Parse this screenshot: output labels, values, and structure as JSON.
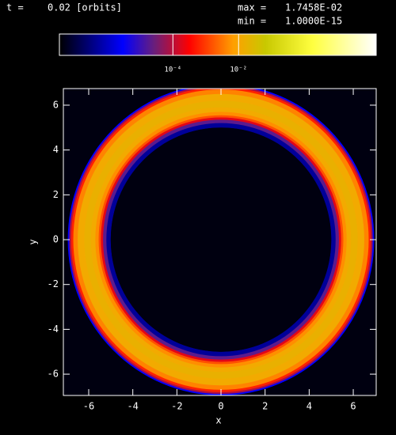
{
  "chart_data": {
    "type": "radial-image",
    "header": {
      "time_label": "t =",
      "time_value": "0.02 [orbits]",
      "max_label": "max =",
      "max_value": "1.7458E-02",
      "min_label": "min =",
      "min_value": "1.0000E-15"
    },
    "xlabel": "x",
    "ylabel": "y",
    "xlim": [
      -7.15,
      7.04
    ],
    "ylim": [
      -6.95,
      6.74
    ],
    "xticks": [
      -6,
      -4,
      -2,
      0,
      2,
      4,
      6
    ],
    "yticks": [
      -6,
      -4,
      -2,
      0,
      2,
      4,
      6
    ],
    "center": [
      0,
      0
    ],
    "r": [
      5.0,
      5.2,
      5.35,
      5.45,
      5.55,
      5.7,
      5.9,
      6.2,
      6.5,
      6.7,
      6.8,
      6.88,
      6.95
    ],
    "values": [
      1e-08,
      5e-07,
      2e-05,
      0.0002,
      0.0015,
      0.005,
      0.012,
      0.017,
      0.012,
      0.004,
      0.0006,
      8e-05,
      3e-06
    ],
    "colorbar": {
      "log": true,
      "lim": [
        3.5e-08,
        155
      ],
      "ticks": [
        {
          "value": 0.0001,
          "label": "10⁻⁴"
        },
        {
          "value": 0.01,
          "label": "10⁻²"
        }
      ]
    },
    "colormap": [
      {
        "at": 0,
        "color": "#000000"
      },
      {
        "at": 0.2,
        "color": "#0000ff"
      },
      {
        "at": 0.3,
        "color": "#6a1f7a"
      },
      {
        "at": 0.41,
        "color": "#ff0000"
      },
      {
        "at": 0.55,
        "color": "#ffa000"
      },
      {
        "at": 0.65,
        "color": "#c8c800"
      },
      {
        "at": 0.8,
        "color": "#ffff40"
      },
      {
        "at": 1,
        "color": "#ffffff"
      }
    ],
    "background": "#000010"
  }
}
